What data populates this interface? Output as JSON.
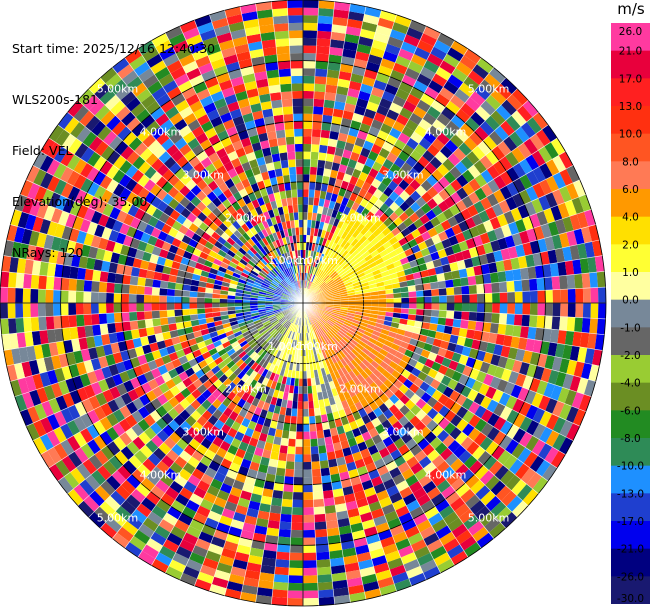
{
  "info": {
    "start_time": "Start time: 2025/12/16 12:40:30",
    "instrument": "WLS200s-181",
    "field": "Field: VEL",
    "elevation": "Elevation(deg): 35.00",
    "nrays": "NRays: 120"
  },
  "chart_data": {
    "type": "heatmap",
    "projection": "polar",
    "rays": 120,
    "max_range_km": 5.0,
    "range_rings_km": [
      1.0,
      2.0,
      3.0,
      4.0,
      5.0
    ],
    "ring_labels": [
      "1.00km",
      "2.00km",
      "3.00km",
      "4.00km",
      "5.00km"
    ],
    "colorbar": {
      "title": "m/s",
      "ticks": [
        "26.0",
        "21.0",
        "17.0",
        "13.0",
        "10.0",
        "8.0",
        "6.0",
        "4.0",
        "2.0",
        "1.0",
        "0.0",
        "-1.0",
        "-2.0",
        "-4.0",
        "-6.0",
        "-8.0",
        "-10.0",
        "-13.0",
        "-17.0",
        "-21.0",
        "-26.0",
        "-30.0"
      ],
      "colors": [
        "#ff3aa0",
        "#e8003c",
        "#ff2020",
        "#ff3010",
        "#ff5522",
        "#ff7a55",
        "#ff9900",
        "#ffe000",
        "#ffff33",
        "#ffffa0",
        "#778899",
        "#666666",
        "#99cc33",
        "#6b8e23",
        "#228b22",
        "#2e8b57",
        "#1e90ff",
        "#1f3fcf",
        "#0000ee",
        "#000080",
        "#191970"
      ]
    },
    "data_note": "Coherent velocity echo within ~2 km: toward lidar (blue/green) NW-W-SW, away (yellow/orange) NE-E-SE; noise (random colours) beyond ~1.8 km"
  }
}
